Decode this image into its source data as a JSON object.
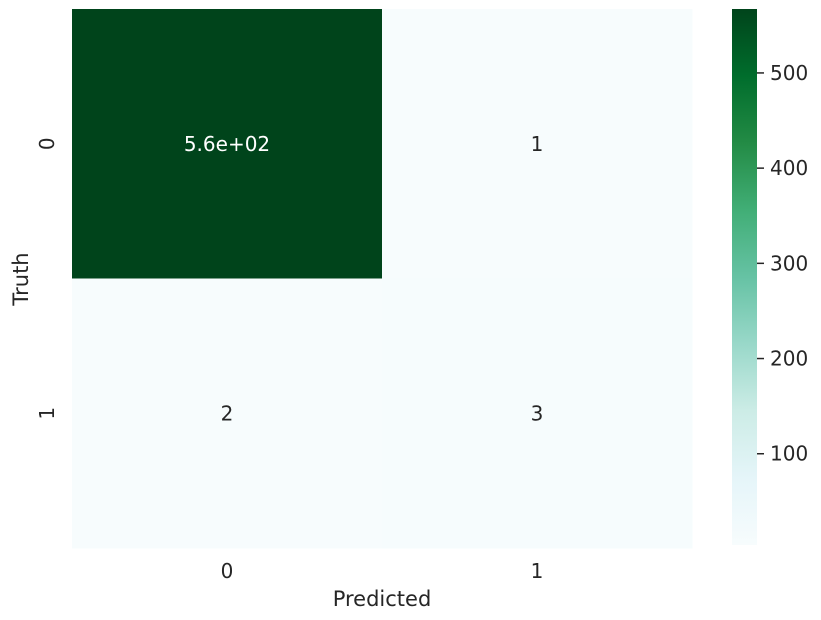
{
  "chart_data": {
    "type": "heatmap",
    "title": "",
    "xlabel": "Predicted",
    "ylabel": "Truth",
    "x_categories": [
      "0",
      "1"
    ],
    "y_categories": [
      "0",
      "1"
    ],
    "values": [
      [
        564,
        1
      ],
      [
        2,
        3
      ]
    ],
    "annotations": [
      [
        "5.6e+02",
        "1"
      ],
      [
        "2",
        "3"
      ]
    ],
    "colormap": "BuGn",
    "colorbar": {
      "range": [
        1,
        564
      ],
      "ticks": [
        100,
        200,
        300,
        400,
        500
      ],
      "tick_labels": [
        "100",
        "200",
        "300",
        "400",
        "500"
      ]
    },
    "colors": [
      "#f7fcfd",
      "#e5f5f9",
      "#ccece6",
      "#99d8c9",
      "#66c2a4",
      "#41ae76",
      "#238b45",
      "#006d2c",
      "#00441b"
    ]
  }
}
